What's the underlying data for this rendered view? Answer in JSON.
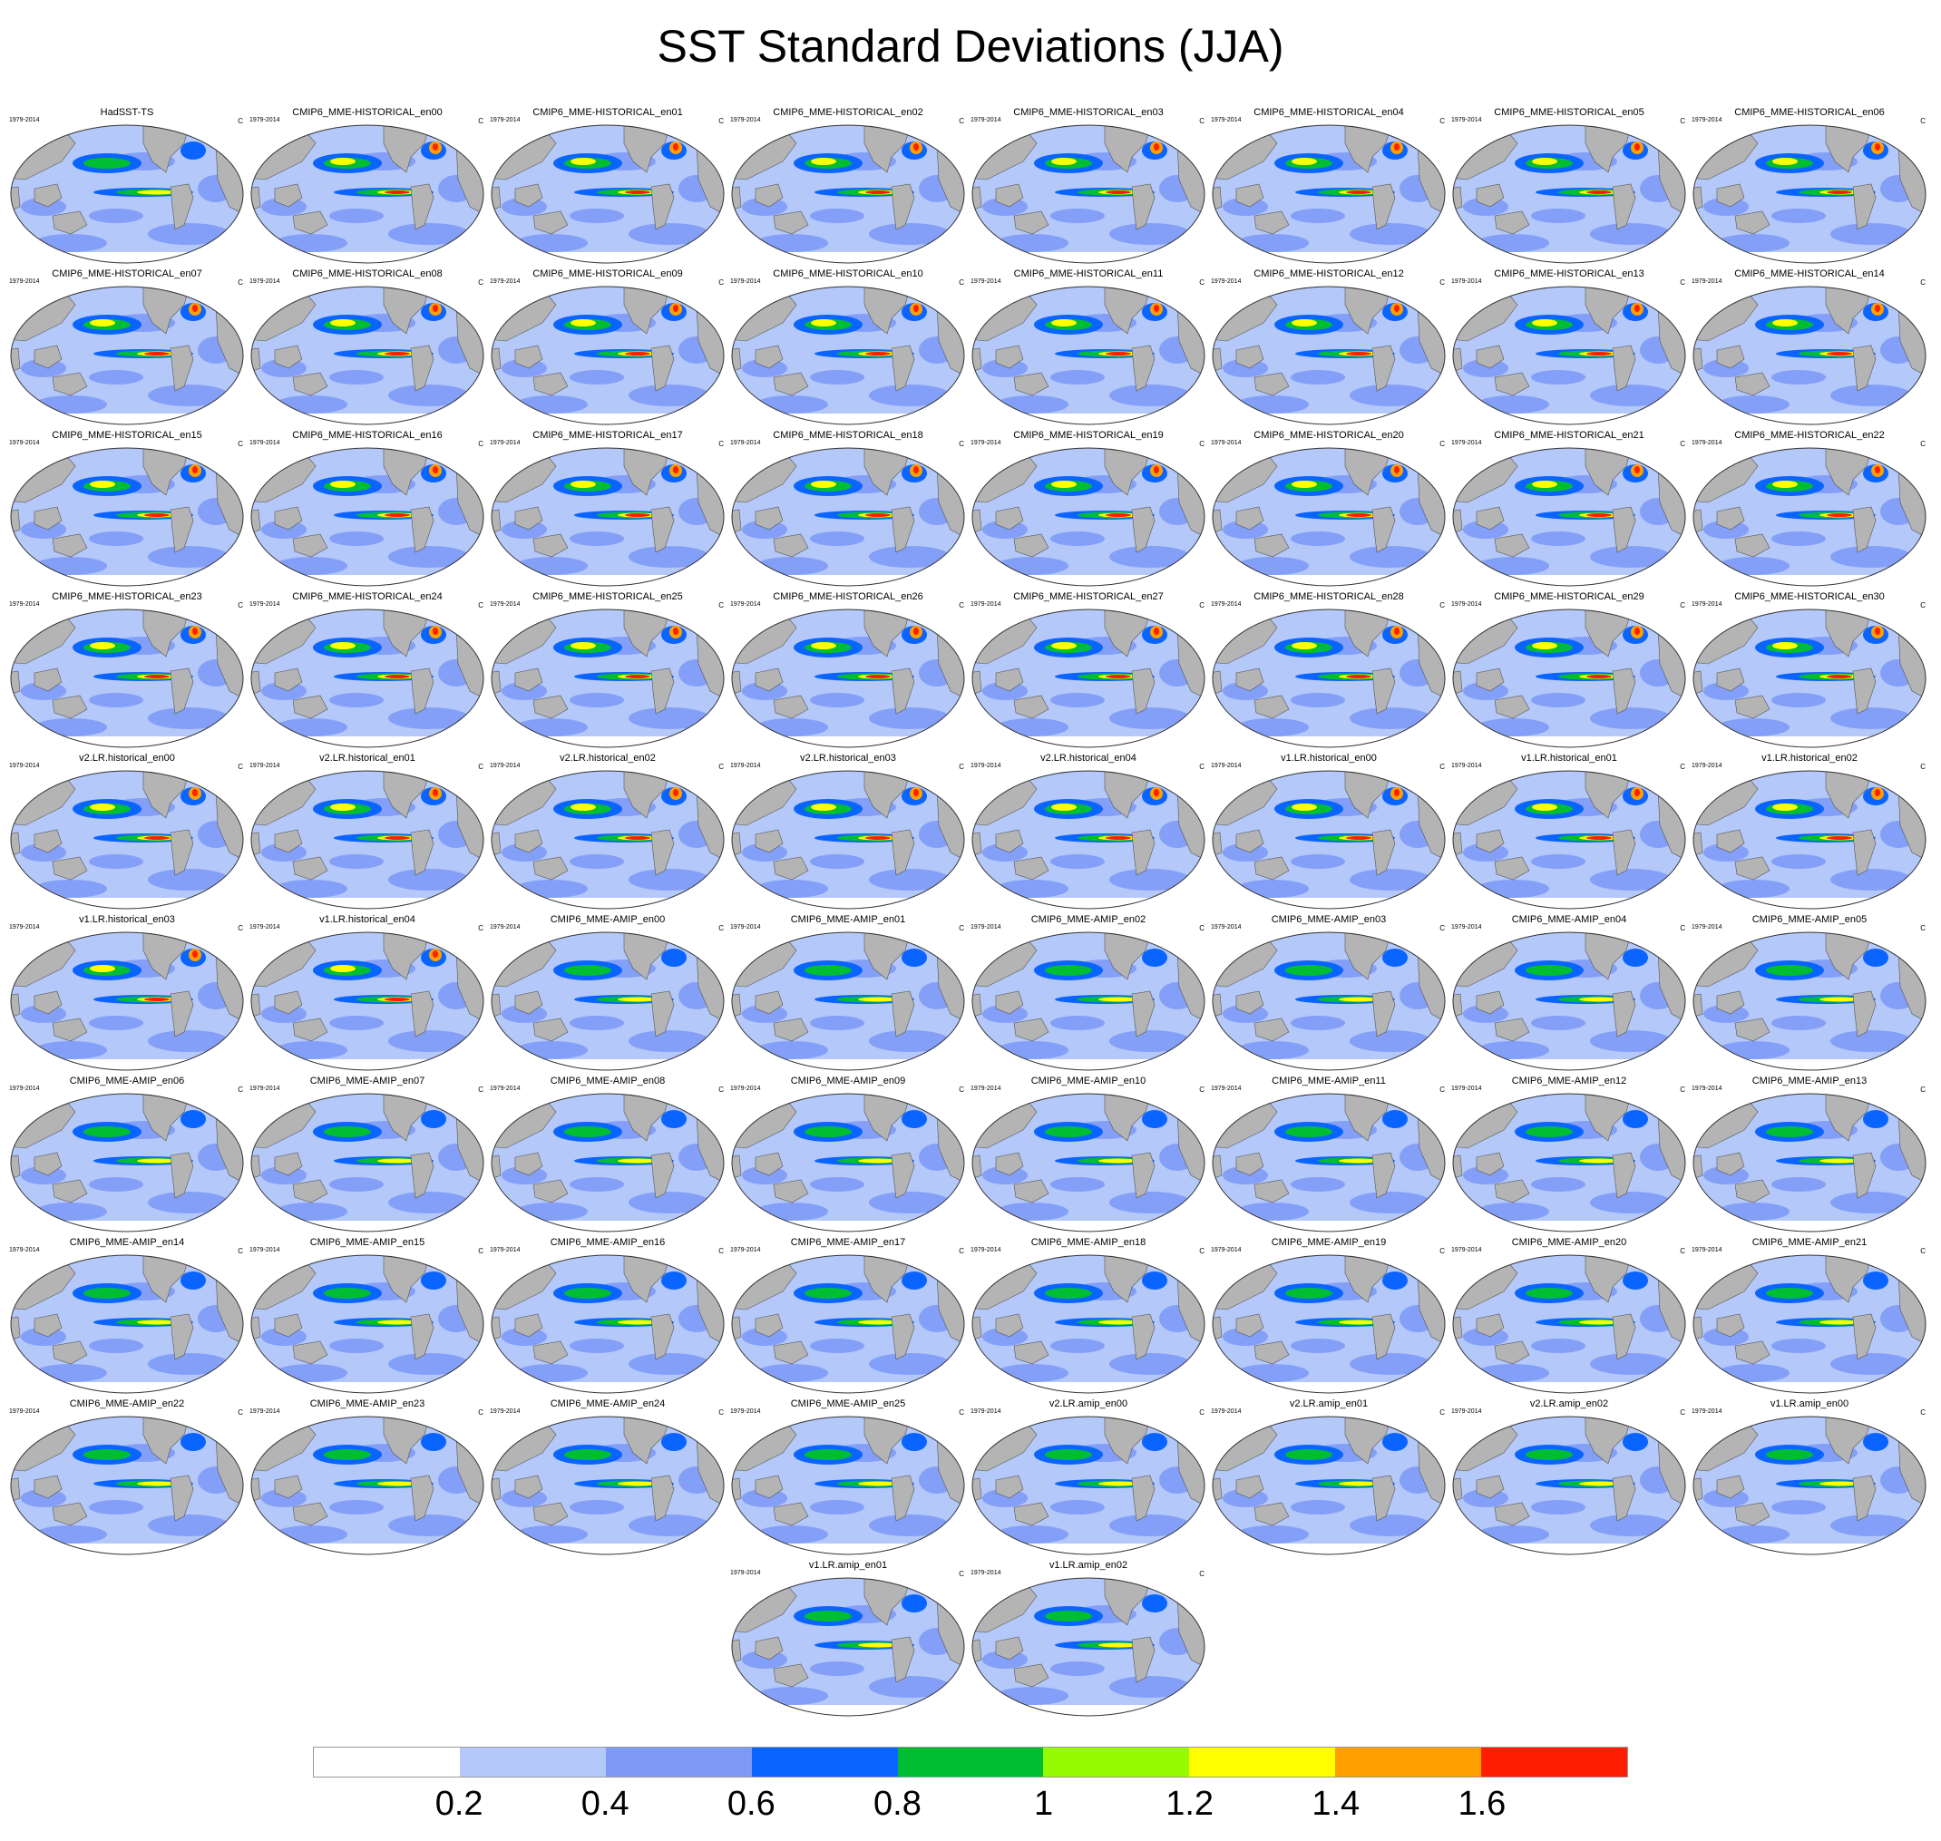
{
  "title": "SST Standard Deviations (JJA)",
  "period": "1979-2014",
  "units": "C",
  "panels": [
    "HadSST-TS",
    "CMIP6_MME-HISTORICAL_en00",
    "CMIP6_MME-HISTORICAL_en01",
    "CMIP6_MME-HISTORICAL_en02",
    "CMIP6_MME-HISTORICAL_en03",
    "CMIP6_MME-HISTORICAL_en04",
    "CMIP6_MME-HISTORICAL_en05",
    "CMIP6_MME-HISTORICAL_en06",
    "CMIP6_MME-HISTORICAL_en07",
    "CMIP6_MME-HISTORICAL_en08",
    "CMIP6_MME-HISTORICAL_en09",
    "CMIP6_MME-HISTORICAL_en10",
    "CMIP6_MME-HISTORICAL_en11",
    "CMIP6_MME-HISTORICAL_en12",
    "CMIP6_MME-HISTORICAL_en13",
    "CMIP6_MME-HISTORICAL_en14",
    "CMIP6_MME-HISTORICAL_en15",
    "CMIP6_MME-HISTORICAL_en16",
    "CMIP6_MME-HISTORICAL_en17",
    "CMIP6_MME-HISTORICAL_en18",
    "CMIP6_MME-HISTORICAL_en19",
    "CMIP6_MME-HISTORICAL_en20",
    "CMIP6_MME-HISTORICAL_en21",
    "CMIP6_MME-HISTORICAL_en22",
    "CMIP6_MME-HISTORICAL_en23",
    "CMIP6_MME-HISTORICAL_en24",
    "CMIP6_MME-HISTORICAL_en25",
    "CMIP6_MME-HISTORICAL_en26",
    "CMIP6_MME-HISTORICAL_en27",
    "CMIP6_MME-HISTORICAL_en28",
    "CMIP6_MME-HISTORICAL_en29",
    "CMIP6_MME-HISTORICAL_en30",
    "v2.LR.historical_en00",
    "v2.LR.historical_en01",
    "v2.LR.historical_en02",
    "v2.LR.historical_en03",
    "v2.LR.historical_en04",
    "v1.LR.historical_en00",
    "v1.LR.historical_en01",
    "v1.LR.historical_en02",
    "v1.LR.historical_en03",
    "v1.LR.historical_en04",
    "CMIP6_MME-AMIP_en00",
    "CMIP6_MME-AMIP_en01",
    "CMIP6_MME-AMIP_en02",
    "CMIP6_MME-AMIP_en03",
    "CMIP6_MME-AMIP_en04",
    "CMIP6_MME-AMIP_en05",
    "CMIP6_MME-AMIP_en06",
    "CMIP6_MME-AMIP_en07",
    "CMIP6_MME-AMIP_en08",
    "CMIP6_MME-AMIP_en09",
    "CMIP6_MME-AMIP_en10",
    "CMIP6_MME-AMIP_en11",
    "CMIP6_MME-AMIP_en12",
    "CMIP6_MME-AMIP_en13",
    "CMIP6_MME-AMIP_en14",
    "CMIP6_MME-AMIP_en15",
    "CMIP6_MME-AMIP_en16",
    "CMIP6_MME-AMIP_en17",
    "CMIP6_MME-AMIP_en18",
    "CMIP6_MME-AMIP_en19",
    "CMIP6_MME-AMIP_en20",
    "CMIP6_MME-AMIP_en21",
    "CMIP6_MME-AMIP_en22",
    "CMIP6_MME-AMIP_en23",
    "CMIP6_MME-AMIP_en24",
    "CMIP6_MME-AMIP_en25",
    "v2.LR.amip_en00",
    "v2.LR.amip_en01",
    "v2.LR.amip_en02",
    "v1.LR.amip_en00",
    "v1.LR.amip_en01",
    "v1.LR.amip_en02"
  ],
  "colorbar": {
    "colors": [
      "#ffffff",
      "#b4c8fa",
      "#7e9af6",
      "#0a64ff",
      "#00be32",
      "#96fa00",
      "#ffff00",
      "#ffa000",
      "#ff1e00"
    ],
    "labels": [
      "0.2",
      "0.4",
      "0.6",
      "0.8",
      "1",
      "1.2",
      "1.4",
      "1.6"
    ]
  },
  "colors": {
    "land": "#b4b4b4",
    "ocean_low": "#b4c8fa",
    "ocean_mid": "#7e9af6"
  }
}
